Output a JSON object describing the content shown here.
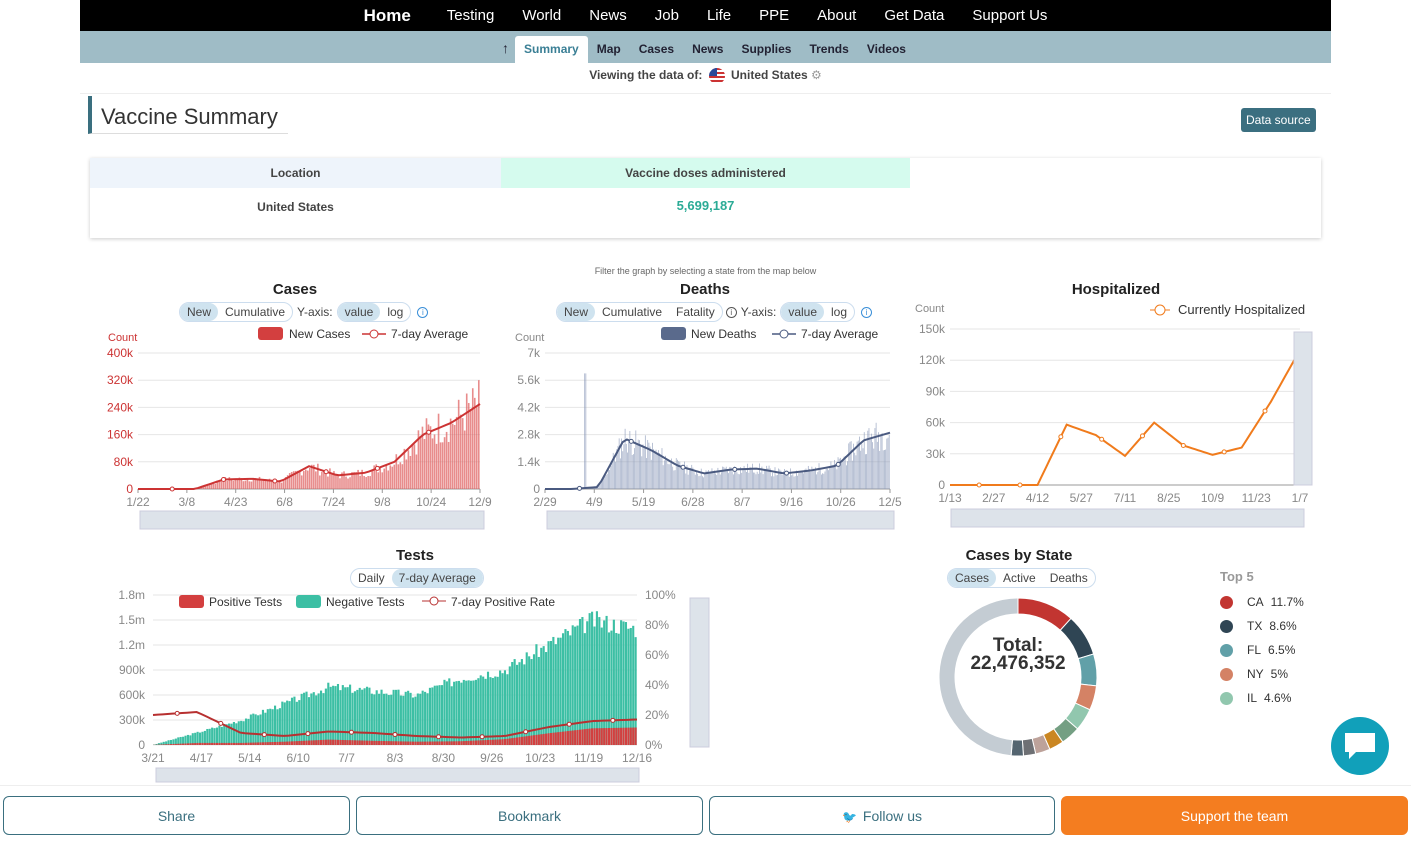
{
  "nav": {
    "items": [
      "Home",
      "Testing",
      "World",
      "News",
      "Job",
      "Life",
      "PPE",
      "About",
      "Get Data",
      "Support Us"
    ],
    "sub": [
      "Summary",
      "Map",
      "Cases",
      "News",
      "Supplies",
      "Trends",
      "Videos"
    ],
    "up_glyph": "↑"
  },
  "viewing": {
    "label": "Viewing the data of:",
    "country": "United States"
  },
  "page": {
    "title": "Vaccine Summary",
    "data_source": "Data source"
  },
  "table": {
    "headers": [
      "Location",
      "Vaccine doses administered"
    ],
    "row": [
      "United States",
      "5,699,187"
    ]
  },
  "filter_hint": "Filter the graph by selecting a state from the map below",
  "charts_ui": {
    "cases": {
      "title": "Cases",
      "toggles": [
        "New",
        "Cumulative"
      ],
      "yaxis": "Y-axis:",
      "scale": [
        "value",
        "log"
      ],
      "legend": [
        "New Cases",
        "7-day Average"
      ]
    },
    "deaths": {
      "title": "Deaths",
      "toggles": [
        "New",
        "Cumulative",
        "Fatality"
      ],
      "yaxis": "Y-axis:",
      "scale": [
        "value",
        "log"
      ],
      "legend": [
        "New Deaths",
        "7-day Average"
      ]
    },
    "hosp": {
      "title": "Hospitalized",
      "legend": [
        "Currently Hospitalized"
      ]
    },
    "tests": {
      "title": "Tests",
      "toggles": [
        "Daily",
        "7-day Average"
      ],
      "legend": [
        "Positive Tests",
        "Negative Tests",
        "7-day Positive Rate"
      ]
    },
    "states": {
      "title": "Cases by State",
      "toggles": [
        "Cases",
        "Active",
        "Deaths"
      ],
      "total_label": "Total:",
      "total": "22,476,352",
      "top_label": "Top 5"
    }
  },
  "chart_data": [
    {
      "type": "bar",
      "title": "Cases",
      "ylabel": "Count",
      "ylim": [
        0,
        400000
      ],
      "yticks": [
        "0",
        "80k",
        "160k",
        "240k",
        "320k",
        "400k"
      ],
      "xticks": [
        "1/22",
        "3/8",
        "4/23",
        "6/8",
        "7/24",
        "9/8",
        "10/24",
        "12/9"
      ],
      "series": [
        {
          "name": "7-day Average",
          "values": [
            0,
            0,
            0,
            28000,
            30000,
            22000,
            67000,
            40000,
            48000,
            80000,
            160000,
            195000,
            250000
          ]
        }
      ],
      "colors": {
        "bar": "#e06666",
        "line": "#cc3333"
      }
    },
    {
      "type": "bar",
      "title": "Deaths",
      "ylabel": "Count",
      "ylim": [
        0,
        7000
      ],
      "yticks": [
        "0",
        "1.4k",
        "2.8k",
        "4.2k",
        "5.6k",
        "7k"
      ],
      "xticks": [
        "2/29",
        "4/9",
        "5/19",
        "6/28",
        "8/7",
        "9/16",
        "10/26",
        "12/5"
      ],
      "series": [
        {
          "name": "7-day Average",
          "values": [
            0,
            0,
            100,
            2600,
            2000,
            1200,
            800,
            1000,
            1050,
            800,
            950,
            1200,
            2500,
            2900
          ]
        }
      ],
      "colors": {
        "bar": "#8a98b8",
        "line": "#4a5a80"
      }
    },
    {
      "type": "line",
      "title": "Hospitalized",
      "ylabel": "Count",
      "ylim": [
        0,
        150000
      ],
      "yticks": [
        "0",
        "30k",
        "60k",
        "90k",
        "120k",
        "150k"
      ],
      "xticks": [
        "1/13",
        "2/27",
        "4/12",
        "5/27",
        "7/11",
        "8/25",
        "10/9",
        "11/23",
        "1/7"
      ],
      "series": [
        {
          "name": "Currently Hospitalized",
          "values": [
            0,
            0,
            0,
            0,
            58000,
            48000,
            28000,
            60000,
            38000,
            29000,
            36000,
            80000,
            130000
          ]
        }
      ],
      "colors": {
        "line": "#f07b1c"
      }
    },
    {
      "type": "bar",
      "title": "Tests",
      "ylim": [
        0,
        1800000
      ],
      "yticks": [
        "0",
        "300k",
        "600k",
        "900k",
        "1.2m",
        "1.5m",
        "1.8m"
      ],
      "y2ticks": [
        "0%",
        "20%",
        "40%",
        "60%",
        "80%",
        "100%"
      ],
      "xticks": [
        "3/21",
        "4/17",
        "5/14",
        "6/10",
        "7/7",
        "8/3",
        "8/30",
        "9/26",
        "10/23",
        "11/19",
        "12/16"
      ],
      "series": [
        {
          "name": "Negative Tests",
          "values": [
            5000,
            150000,
            300000,
            500000,
            700000,
            650000,
            600000,
            800000,
            900000,
            1200000,
            1500000,
            1400000
          ]
        },
        {
          "name": "Positive Tests",
          "values": [
            2000,
            25000,
            25000,
            40000,
            65000,
            50000,
            40000,
            45000,
            70000,
            140000,
            200000,
            210000
          ]
        },
        {
          "name": "7-day Positive Rate",
          "values": [
            20,
            22,
            8,
            6,
            9,
            8,
            6,
            5,
            6,
            12,
            16,
            17
          ]
        }
      ],
      "colors": {
        "neg": "#3cbfa4",
        "pos": "#d33f3f",
        "rate": "#b73030"
      }
    },
    {
      "type": "pie",
      "title": "Cases by State",
      "slices": [
        {
          "label": "CA",
          "value": 11.7,
          "color": "#c23531"
        },
        {
          "label": "TX",
          "value": 8.6,
          "color": "#2f4554"
        },
        {
          "label": "FL",
          "value": 6.5,
          "color": "#61a0a8"
        },
        {
          "label": "NY",
          "value": 5,
          "color": "#d48265"
        },
        {
          "label": "IL",
          "value": 4.6,
          "color": "#91c7ae"
        },
        {
          "label": "",
          "value": 4,
          "color": "#749f83"
        },
        {
          "label": "",
          "value": 3,
          "color": "#ca8622"
        },
        {
          "label": "",
          "value": 3,
          "color": "#bda29a"
        },
        {
          "label": "",
          "value": 2.5,
          "color": "#6e7074"
        },
        {
          "label": "",
          "value": 2.5,
          "color": "#546570"
        },
        {
          "label": "",
          "value": 48.6,
          "color": "#c4ccd3"
        }
      ]
    }
  ],
  "bottom": {
    "share": "Share",
    "bookmark": "Bookmark",
    "follow": "Follow us",
    "support": "Support the team"
  }
}
